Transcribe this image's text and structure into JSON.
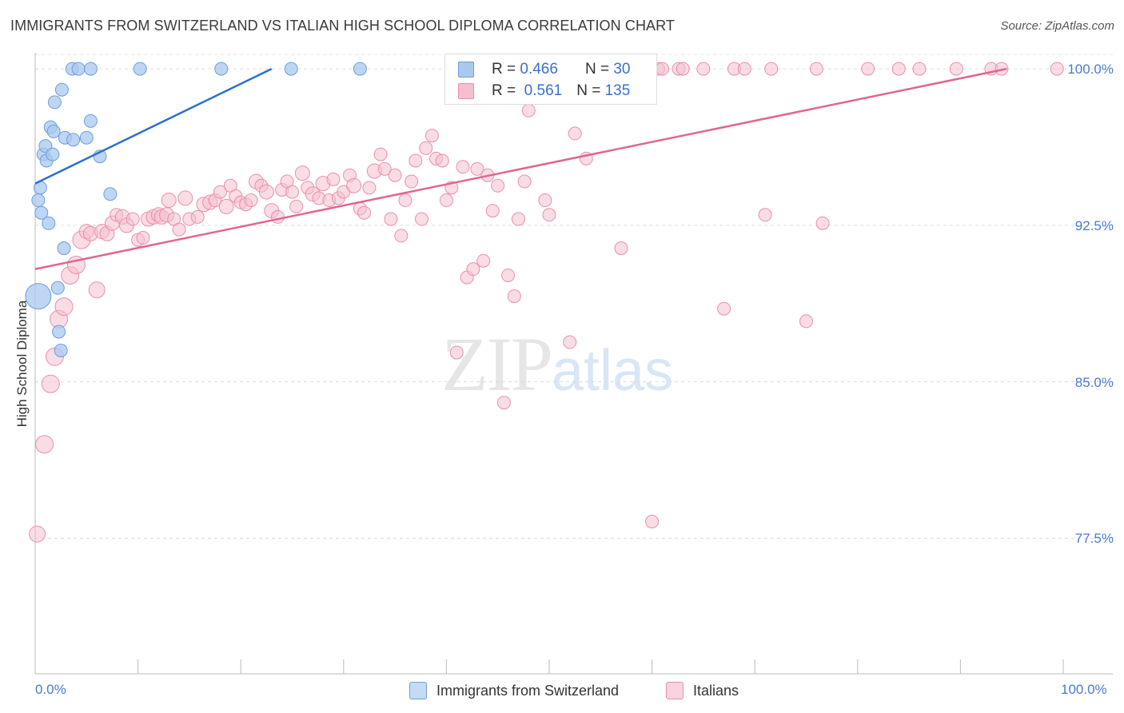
{
  "title": "IMMIGRANTS FROM SWITZERLAND VS ITALIAN HIGH SCHOOL DIPLOMA CORRELATION CHART",
  "source": "Source: ZipAtlas.com",
  "watermark": {
    "zip": "ZIP",
    "atlas": "atlas"
  },
  "legend": {
    "r_label": "R =",
    "n_label": "N =",
    "rows": [
      {
        "r": "0.466",
        "n": "30"
      },
      {
        "r": "0.561",
        "n": "135"
      }
    ]
  },
  "chart_data": {
    "type": "scatter",
    "title": "IMMIGRANTS FROM SWITZERLAND VS ITALIAN HIGH SCHOOL DIPLOMA CORRELATION CHART",
    "xlabel": "",
    "ylabel": "High School Diploma",
    "xlim": [
      0,
      100
    ],
    "ylim": [
      71.0,
      101.0
    ],
    "x_tick_labels": [
      "0.0%",
      "100.0%"
    ],
    "y_ticks": [
      {
        "value": 100.0,
        "label": "100.0%"
      },
      {
        "value": 92.5,
        "label": "92.5%"
      },
      {
        "value": 85.0,
        "label": "85.0%"
      },
      {
        "value": 77.5,
        "label": "77.5%"
      }
    ],
    "grid": "horizontal dashed",
    "legend_position": "bottom",
    "series": [
      {
        "name": "Immigrants from Switzerland",
        "color": "#a8c8f0",
        "edge": "#6e9edc",
        "trend_color": "#2a6fd0",
        "trend": {
          "x0": 0,
          "y0": 94.5,
          "x1": 23.0,
          "y1": 100.0
        },
        "points": [
          [
            0.3,
            89.1,
            16
          ],
          [
            0.3,
            93.7,
            8
          ],
          [
            0.5,
            94.3,
            8
          ],
          [
            0.6,
            93.1,
            8
          ],
          [
            0.8,
            95.9,
            8
          ],
          [
            1.0,
            96.3,
            8
          ],
          [
            1.1,
            95.6,
            8
          ],
          [
            1.3,
            92.6,
            8
          ],
          [
            1.5,
            97.2,
            8
          ],
          [
            1.7,
            95.9,
            8
          ],
          [
            1.8,
            97.0,
            8
          ],
          [
            1.9,
            98.4,
            8
          ],
          [
            2.2,
            89.5,
            8
          ],
          [
            2.3,
            87.4,
            8
          ],
          [
            2.5,
            86.5,
            8
          ],
          [
            2.6,
            99.0,
            8
          ],
          [
            2.8,
            91.4,
            8
          ],
          [
            2.9,
            96.7,
            8
          ],
          [
            3.7,
            96.6,
            8
          ],
          [
            5.0,
            96.7,
            8
          ],
          [
            5.4,
            97.5,
            8
          ],
          [
            6.3,
            95.8,
            8
          ],
          [
            7.3,
            94.0,
            8
          ],
          [
            3.6,
            100.0,
            8
          ],
          [
            4.2,
            100.0,
            8
          ],
          [
            5.4,
            100.0,
            8
          ],
          [
            10.2,
            100.0,
            8
          ],
          [
            18.1,
            100.0,
            8
          ],
          [
            24.9,
            100.0,
            8
          ],
          [
            31.6,
            100.0,
            8
          ]
        ]
      },
      {
        "name": "Italians",
        "color": "#f5bfcf",
        "edge": "#e890ac",
        "trend_color": "#e06690",
        "trend": {
          "x0": 0,
          "y0": 90.4,
          "x1": 94.5,
          "y1": 100.0
        },
        "points": [
          [
            0.2,
            77.7,
            10
          ],
          [
            0.9,
            82.0,
            11
          ],
          [
            1.5,
            84.9,
            11
          ],
          [
            1.9,
            86.2,
            11
          ],
          [
            2.3,
            88.0,
            11
          ],
          [
            2.8,
            88.6,
            11
          ],
          [
            3.4,
            90.1,
            11
          ],
          [
            4.0,
            90.6,
            11
          ],
          [
            4.5,
            91.8,
            11
          ],
          [
            5.0,
            92.2,
            9
          ],
          [
            5.4,
            92.1,
            9
          ],
          [
            6.0,
            89.4,
            10
          ],
          [
            6.5,
            92.2,
            9
          ],
          [
            7.0,
            92.1,
            9
          ],
          [
            7.5,
            92.6,
            9
          ],
          [
            7.9,
            93.0,
            8
          ],
          [
            8.5,
            92.9,
            9
          ],
          [
            8.9,
            92.5,
            9
          ],
          [
            9.5,
            92.8,
            8
          ],
          [
            10.0,
            91.8,
            8
          ],
          [
            10.5,
            91.9,
            8
          ],
          [
            11.0,
            92.8,
            9
          ],
          [
            11.5,
            92.9,
            9
          ],
          [
            12.0,
            93.0,
            9
          ],
          [
            12.3,
            92.9,
            9
          ],
          [
            12.8,
            93.0,
            9
          ],
          [
            13.0,
            93.7,
            9
          ],
          [
            13.5,
            92.8,
            8
          ],
          [
            14.0,
            92.3,
            8
          ],
          [
            14.6,
            93.8,
            9
          ],
          [
            15.0,
            92.8,
            8
          ],
          [
            15.8,
            92.9,
            8
          ],
          [
            16.4,
            93.5,
            9
          ],
          [
            17.0,
            93.6,
            9
          ],
          [
            17.5,
            93.7,
            8
          ],
          [
            18.0,
            94.1,
            8
          ],
          [
            18.6,
            93.4,
            9
          ],
          [
            19.0,
            94.4,
            8
          ],
          [
            19.5,
            93.9,
            8
          ],
          [
            20.0,
            93.6,
            8
          ],
          [
            20.5,
            93.5,
            8
          ],
          [
            21.0,
            93.7,
            8
          ],
          [
            21.5,
            94.6,
            9
          ],
          [
            22.0,
            94.4,
            8
          ],
          [
            22.5,
            94.1,
            9
          ],
          [
            23.0,
            93.2,
            9
          ],
          [
            23.6,
            92.9,
            8
          ],
          [
            24.0,
            94.2,
            8
          ],
          [
            24.5,
            94.6,
            8
          ],
          [
            25.0,
            94.1,
            8
          ],
          [
            25.4,
            93.4,
            8
          ],
          [
            26.0,
            95.0,
            9
          ],
          [
            26.5,
            94.3,
            8
          ],
          [
            27.0,
            94.0,
            9
          ],
          [
            27.6,
            93.8,
            8
          ],
          [
            28.0,
            94.5,
            9
          ],
          [
            28.6,
            93.7,
            8
          ],
          [
            29.0,
            94.7,
            8
          ],
          [
            29.5,
            93.8,
            8
          ],
          [
            30.0,
            94.1,
            8
          ],
          [
            30.6,
            94.9,
            8
          ],
          [
            31.0,
            94.4,
            9
          ],
          [
            31.6,
            93.3,
            8
          ],
          [
            32.0,
            93.1,
            8
          ],
          [
            32.5,
            94.3,
            8
          ],
          [
            33.0,
            95.1,
            9
          ],
          [
            33.6,
            95.9,
            8
          ],
          [
            34.0,
            95.2,
            8
          ],
          [
            34.6,
            92.8,
            8
          ],
          [
            35.0,
            94.9,
            8
          ],
          [
            35.6,
            92.0,
            8
          ],
          [
            36.0,
            93.7,
            8
          ],
          [
            36.6,
            94.6,
            8
          ],
          [
            37.0,
            95.6,
            8
          ],
          [
            37.6,
            92.8,
            8
          ],
          [
            38.0,
            96.2,
            8
          ],
          [
            38.6,
            96.8,
            8
          ],
          [
            39.0,
            95.7,
            8
          ],
          [
            39.6,
            95.6,
            8
          ],
          [
            40.0,
            93.7,
            8
          ],
          [
            40.5,
            94.3,
            8
          ],
          [
            41.0,
            86.4,
            8
          ],
          [
            41.6,
            95.3,
            8
          ],
          [
            42.0,
            90.0,
            8
          ],
          [
            42.6,
            90.4,
            8
          ],
          [
            43.0,
            95.2,
            8
          ],
          [
            43.6,
            90.8,
            8
          ],
          [
            44.0,
            94.9,
            8
          ],
          [
            44.5,
            93.2,
            8
          ],
          [
            45.0,
            94.4,
            8
          ],
          [
            45.6,
            84.0,
            8
          ],
          [
            46.0,
            90.1,
            8
          ],
          [
            46.6,
            89.1,
            8
          ],
          [
            47.0,
            92.8,
            8
          ],
          [
            47.6,
            94.6,
            8
          ],
          [
            48.0,
            98.0,
            8
          ],
          [
            49.0,
            99.6,
            8
          ],
          [
            49.6,
            93.7,
            8
          ],
          [
            50.0,
            93.0,
            8
          ],
          [
            51.0,
            100.0,
            8
          ],
          [
            52.0,
            86.9,
            8
          ],
          [
            52.5,
            96.9,
            8
          ],
          [
            53.0,
            100.0,
            9
          ],
          [
            53.6,
            95.7,
            8
          ],
          [
            54.0,
            100.0,
            8
          ],
          [
            55.0,
            100.0,
            8
          ],
          [
            55.6,
            99.1,
            8
          ],
          [
            56.0,
            100.0,
            8
          ],
          [
            57.0,
            91.4,
            8
          ],
          [
            57.6,
            100.0,
            8
          ],
          [
            58.0,
            100.0,
            8
          ],
          [
            58.6,
            100.0,
            8
          ],
          [
            59.0,
            100.0,
            8
          ],
          [
            59.6,
            100.0,
            8
          ],
          [
            60.0,
            78.3,
            8
          ],
          [
            60.6,
            100.0,
            8
          ],
          [
            61.0,
            100.0,
            8
          ],
          [
            62.6,
            100.0,
            8
          ],
          [
            63.0,
            100.0,
            8
          ],
          [
            65.0,
            100.0,
            8
          ],
          [
            67.0,
            88.5,
            8
          ],
          [
            68.0,
            100.0,
            8
          ],
          [
            69.0,
            100.0,
            8
          ],
          [
            71.0,
            93.0,
            8
          ],
          [
            71.6,
            100.0,
            8
          ],
          [
            75.0,
            87.9,
            8
          ],
          [
            76.0,
            100.0,
            8
          ],
          [
            76.6,
            92.6,
            8
          ],
          [
            81.0,
            100.0,
            8
          ],
          [
            84.0,
            100.0,
            8
          ],
          [
            86.0,
            100.0,
            8
          ],
          [
            89.6,
            100.0,
            8
          ],
          [
            93.0,
            100.0,
            8
          ],
          [
            94.0,
            100.0,
            8
          ],
          [
            99.4,
            100.0,
            8
          ]
        ]
      }
    ]
  }
}
